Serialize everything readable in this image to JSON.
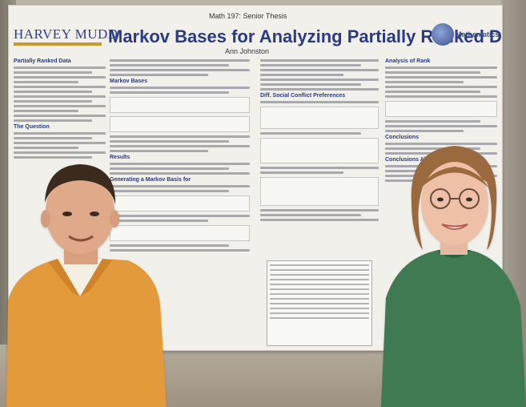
{
  "poster": {
    "institution": "HARVEY MUDD",
    "course": "Math 197: Senior Thesis",
    "title": "Markov Bases for Analyzing Partially Ranked Data",
    "author": "Ann Johnston",
    "dept_logo_text": "Mathematics",
    "sections": {
      "col1_head": "Partially Ranked Data",
      "col1_sub": "The Question",
      "col2_head": "Markov Bases",
      "col2_sub1": "Results",
      "col2_sub2": "Generating a Markov Basis for",
      "col3_head": "Diff. Social Conflict Preferences",
      "col4_head": "Analysis of Rank",
      "col4_sub1": "Conclusions",
      "col4_sub2": "Conclusions About Social"
    }
  },
  "colors": {
    "title_blue": "#2b3a84",
    "hmc_gold": "#c79a2e",
    "left_shirt": "#e39a3a",
    "right_shirt": "#3f7a52"
  }
}
